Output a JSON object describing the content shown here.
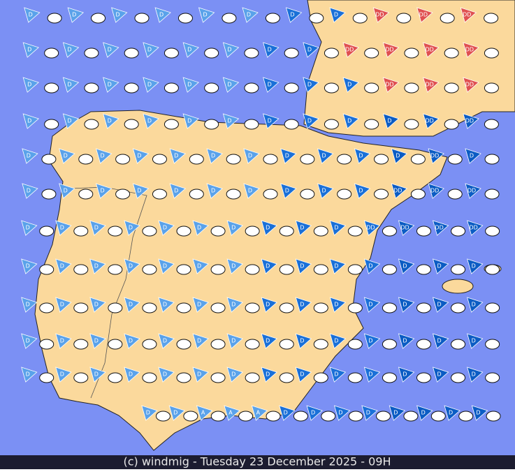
{
  "caption": "(c) windmig - Tuesday 23 December 2025 - 09H",
  "wind_symbols": [
    [
      "D",
      "D",
      "D",
      "D",
      "D",
      "D",
      "D",
      "D",
      "DD",
      "DD",
      "DD"
    ],
    [
      "D",
      "D",
      "D",
      "D",
      "D",
      "D",
      "D",
      "D",
      "DD",
      "DD",
      "DD",
      "DD"
    ],
    [
      "D",
      "D",
      "D",
      "D",
      "D",
      "D",
      "D",
      "D",
      "D",
      "DD",
      "DD",
      "DD"
    ],
    [
      "D",
      "D",
      "D",
      "D",
      "D",
      "D",
      "D",
      "D",
      "D",
      "D",
      "DD",
      "DD"
    ],
    [
      "D",
      "D",
      "D",
      "D",
      "D",
      "D",
      "D",
      "D",
      "D",
      "D",
      "D",
      "DD",
      "D"
    ],
    [
      "D",
      "D",
      "D",
      "D",
      "D",
      "D",
      "D",
      "D",
      "D",
      "D",
      "DD",
      "DD",
      "DD"
    ],
    [
      "D",
      "D",
      "D",
      "D",
      "D",
      "D",
      "D",
      "D",
      "D",
      "D",
      "DD",
      "DD",
      "DD",
      "DD"
    ],
    [
      "D",
      "D",
      "D",
      "D",
      "D",
      "D",
      "D",
      "D",
      "D",
      "D",
      "D",
      "D",
      "D",
      "D"
    ],
    [
      "D",
      "D",
      "D",
      "D",
      "D",
      "D",
      "D",
      "D",
      "D",
      "D",
      "D",
      "D",
      "D",
      "D"
    ],
    [
      "D",
      "D",
      "D",
      "D",
      "D",
      "D",
      "D",
      "D",
      "D",
      "D",
      "D",
      "D",
      "D",
      "D"
    ],
    [
      "D",
      "D",
      "D",
      "D",
      "D",
      "D",
      "D",
      "D",
      "D",
      "D",
      "D",
      "D",
      "D",
      "D"
    ],
    [
      "D",
      "D",
      "A",
      "A",
      "A",
      "D",
      "D",
      "D",
      "D",
      "D",
      "D",
      "D",
      "D"
    ]
  ]
}
